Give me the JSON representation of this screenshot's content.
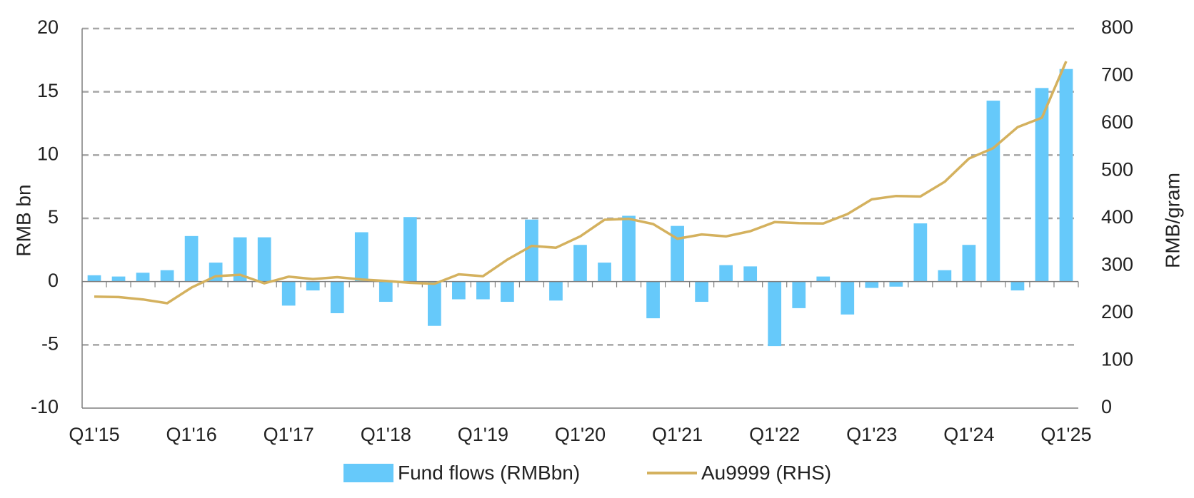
{
  "chart_data": {
    "type": "bar",
    "title": "",
    "xlabel": "",
    "ylabel": "RMB bn",
    "y2label": "RMB/gram",
    "ylim": [
      -10,
      20
    ],
    "y2lim": [
      0,
      800
    ],
    "yticks": [
      -10,
      -5,
      0,
      5,
      10,
      15,
      20
    ],
    "y2ticks": [
      0,
      100,
      200,
      300,
      400,
      500,
      600,
      700,
      800
    ],
    "ytick_labels": [
      "-10",
      "-5",
      "0",
      "5",
      "10",
      "15",
      "20"
    ],
    "y2tick_labels": [
      "0",
      "100",
      "200",
      "300",
      "400",
      "500",
      "600",
      "700",
      "800"
    ],
    "xtick_labels": [
      "Q1'15",
      "Q1'16",
      "Q1'17",
      "Q1'18",
      "Q1'19",
      "Q1'20",
      "Q1'21",
      "Q1'22",
      "Q1'23",
      "Q1'24",
      "Q1'25"
    ],
    "grid": true,
    "legend_position": "bottom",
    "categories": [
      "Q1'15",
      "Q2'15",
      "Q3'15",
      "Q4'15",
      "Q1'16",
      "Q2'16",
      "Q3'16",
      "Q4'16",
      "Q1'17",
      "Q2'17",
      "Q3'17",
      "Q4'17",
      "Q1'18",
      "Q2'18",
      "Q3'18",
      "Q4'18",
      "Q1'19",
      "Q2'19",
      "Q3'19",
      "Q4'19",
      "Q1'20",
      "Q2'20",
      "Q3'20",
      "Q4'20",
      "Q1'21",
      "Q2'21",
      "Q3'21",
      "Q4'21",
      "Q1'22",
      "Q2'22",
      "Q3'22",
      "Q4'22",
      "Q1'23",
      "Q2'23",
      "Q3'23",
      "Q4'23",
      "Q1'24",
      "Q2'24",
      "Q3'24",
      "Q4'24",
      "Q1'25"
    ],
    "series": [
      {
        "name": "Fund flows (RMBbn)",
        "type": "bar",
        "axis": "left",
        "color": "#66c9fa",
        "values": [
          0.5,
          0.4,
          0.7,
          0.9,
          3.6,
          1.5,
          3.5,
          3.5,
          -1.9,
          -0.7,
          -2.5,
          3.9,
          -1.6,
          5.1,
          -3.5,
          -1.4,
          -1.4,
          -1.6,
          4.9,
          -1.5,
          2.9,
          1.5,
          5.2,
          -2.9,
          4.4,
          -1.6,
          1.3,
          1.2,
          -5.1,
          -2.1,
          0.4,
          -2.6,
          -0.5,
          -0.4,
          4.6,
          0.9,
          2.9,
          14.3,
          -0.7,
          15.3,
          16.8
        ]
      },
      {
        "name": "Au9999 (RHS)",
        "type": "line",
        "axis": "right",
        "color": "#d4b15e",
        "values": [
          235,
          234,
          229,
          221,
          254,
          278,
          281,
          263,
          277,
          272,
          276,
          271,
          268,
          264,
          262,
          282,
          278,
          313,
          342,
          338,
          362,
          397,
          399,
          388,
          357,
          366,
          362,
          373,
          392,
          390,
          389,
          409,
          440,
          447,
          446,
          477,
          526,
          548,
          592,
          612,
          731
        ]
      }
    ]
  }
}
